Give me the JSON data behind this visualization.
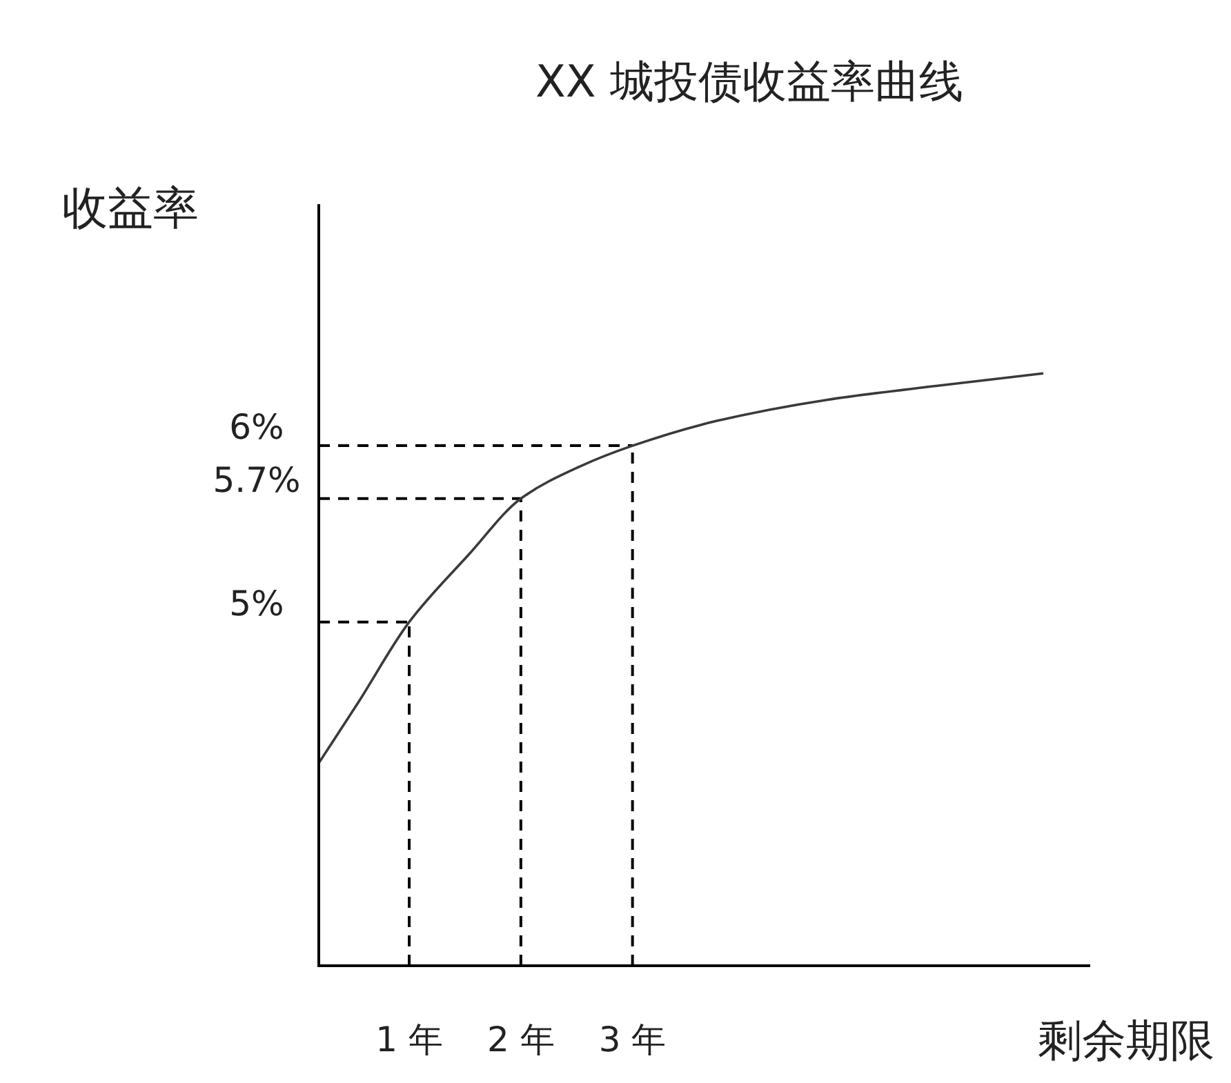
{
  "chart_data": {
    "type": "line",
    "title": "XX 城投债收益率曲线",
    "xlabel": "剩余期限",
    "ylabel": "收益率",
    "xlim": [
      0.19,
      7.1
    ],
    "ylim": [
      3.05,
      7.37
    ],
    "xticks": [
      {
        "value": 1,
        "label": "1 年"
      },
      {
        "value": 2,
        "label": "2 年"
      },
      {
        "value": 3,
        "label": "3 年"
      }
    ],
    "yticks": [
      {
        "value": 5,
        "label": "5%"
      },
      {
        "value": 5.7,
        "label": "5.7%"
      },
      {
        "value": 6,
        "label": "6%"
      }
    ],
    "series": [
      {
        "color": "#3a3a3a",
        "x": [
          0.19,
          0.54,
          1,
          1.53,
          2,
          2.52,
          3,
          3.75,
          4.74,
          5.73,
          6.68
        ],
        "values": [
          4.2,
          4.54,
          5,
          5.38,
          5.7,
          5.88,
          6,
          6.14,
          6.26,
          6.34,
          6.41
        ]
      }
    ],
    "ref_lines": [
      {
        "axis": "x",
        "value": 1,
        "line_style": "dashed",
        "color": "#000000"
      },
      {
        "axis": "x",
        "value": 2,
        "line_style": "dashed",
        "color": "#000000"
      },
      {
        "axis": "x",
        "value": 3,
        "line_style": "dashed",
        "color": "#000000"
      },
      {
        "axis": "y",
        "value": 5,
        "line_style": "dashed",
        "color": "#000000"
      },
      {
        "axis": "y",
        "value": 5.7,
        "line_style": "dashed",
        "color": "#000000"
      },
      {
        "axis": "y",
        "value": 6,
        "line_style": "dashed",
        "color": "#000000"
      }
    ]
  }
}
